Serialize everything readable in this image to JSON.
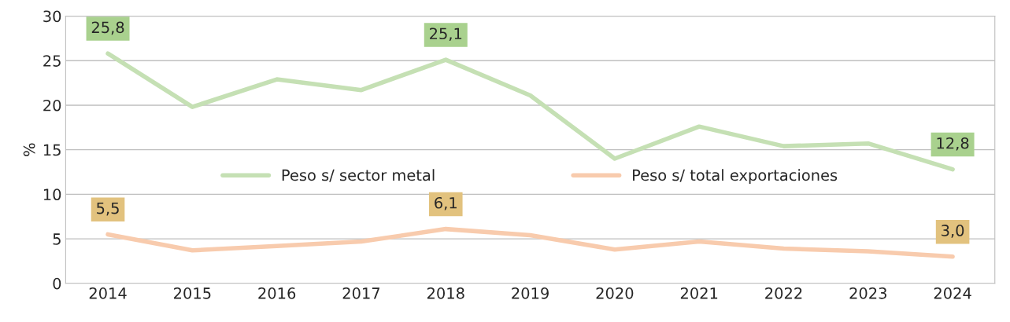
{
  "chart_data": {
    "type": "line",
    "ylabel": "%",
    "categories": [
      "2014",
      "2015",
      "2016",
      "2017",
      "2018",
      "2019",
      "2020",
      "2021",
      "2022",
      "2023",
      "2024"
    ],
    "series": [
      {
        "name": "Peso s/ sector metal",
        "color": "#c5e0b4",
        "values": [
          25.8,
          19.8,
          22.9,
          21.7,
          25.1,
          21.1,
          14.0,
          17.6,
          15.4,
          15.7,
          12.8
        ],
        "value_labels": [
          "25,8",
          null,
          null,
          null,
          "25,1",
          null,
          null,
          null,
          null,
          null,
          "12,8"
        ]
      },
      {
        "name": "Peso s/ total exportaciones",
        "color": "#f8cbad",
        "values": [
          5.5,
          3.7,
          4.2,
          4.7,
          6.1,
          5.4,
          3.8,
          4.7,
          3.9,
          3.6,
          3.0
        ],
        "value_labels": [
          "5,5",
          null,
          null,
          null,
          "6,1",
          null,
          null,
          null,
          null,
          null,
          "3,0"
        ]
      }
    ],
    "ylim": [
      0,
      30
    ],
    "yticks": [
      0,
      5,
      10,
      15,
      20,
      25,
      30
    ],
    "grid": "y",
    "legend": "center",
    "marker": "none",
    "line_style": "solid"
  }
}
